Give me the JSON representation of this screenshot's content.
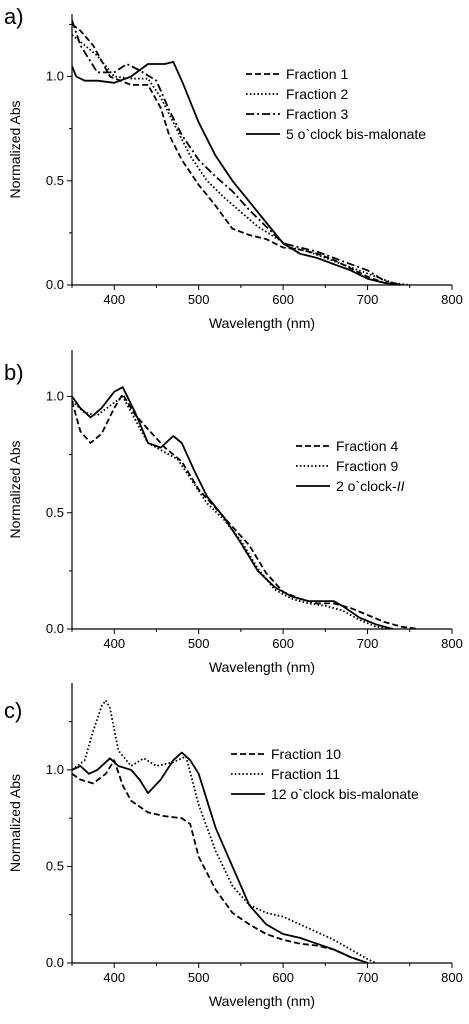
{
  "chart_data": [
    {
      "panel_label": "a)",
      "type": "line",
      "xlabel": "Wavelength (nm)",
      "ylabel": "Normalized Abs",
      "xlim": [
        350,
        800
      ],
      "ylim": [
        0,
        1.3
      ],
      "xticks": [
        400,
        500,
        600,
        700,
        800
      ],
      "yticks": [
        0.0,
        0.5,
        1.0
      ],
      "legend_position": "right",
      "series": [
        {
          "name": "Fraction 1",
          "dash": "dashed",
          "x": [
            350,
            360,
            375,
            395,
            420,
            440,
            455,
            465,
            480,
            500,
            520,
            540,
            560,
            580,
            600,
            620,
            640,
            660,
            680,
            700,
            720,
            740
          ],
          "y": [
            1.25,
            1.22,
            1.15,
            1.0,
            0.96,
            0.96,
            0.85,
            0.72,
            0.6,
            0.48,
            0.38,
            0.27,
            0.24,
            0.22,
            0.18,
            0.17,
            0.15,
            0.12,
            0.08,
            0.04,
            0.01,
            0.0
          ]
        },
        {
          "name": "Fraction 2",
          "dash": "dotted",
          "x": [
            350,
            365,
            380,
            400,
            420,
            440,
            455,
            470,
            490,
            510,
            530,
            550,
            570,
            590,
            610,
            630,
            650,
            670,
            690,
            710,
            730,
            750
          ],
          "y": [
            1.2,
            1.15,
            1.1,
            1.0,
            0.99,
            0.99,
            0.9,
            0.78,
            0.62,
            0.5,
            0.42,
            0.35,
            0.28,
            0.23,
            0.18,
            0.16,
            0.13,
            0.1,
            0.07,
            0.04,
            0.01,
            0.0
          ]
        },
        {
          "name": "Fraction 3",
          "dash": "dashdot",
          "x": [
            350,
            360,
            380,
            400,
            415,
            430,
            450,
            465,
            480,
            500,
            520,
            540,
            560,
            580,
            600,
            620,
            640,
            660,
            680,
            700,
            720,
            740
          ],
          "y": [
            1.27,
            1.15,
            1.02,
            1.02,
            1.06,
            1.03,
            0.98,
            0.84,
            0.72,
            0.6,
            0.52,
            0.45,
            0.36,
            0.28,
            0.2,
            0.18,
            0.16,
            0.13,
            0.1,
            0.07,
            0.02,
            0.0
          ]
        },
        {
          "name": "5 o`clock bis-malonate",
          "dash": "solid",
          "x": [
            350,
            355,
            365,
            380,
            400,
            420,
            440,
            460,
            470,
            480,
            500,
            520,
            540,
            560,
            580,
            600,
            620,
            640,
            660,
            680,
            700,
            720,
            740
          ],
          "y": [
            1.05,
            1.0,
            0.98,
            0.98,
            0.97,
            1.0,
            1.06,
            1.06,
            1.07,
            0.98,
            0.78,
            0.62,
            0.5,
            0.4,
            0.3,
            0.2,
            0.15,
            0.13,
            0.1,
            0.07,
            0.03,
            0.01,
            0.0
          ]
        }
      ]
    },
    {
      "panel_label": "b)",
      "type": "line",
      "xlabel": "Wavelength (nm)",
      "ylabel": "Normalized Abs",
      "xlim": [
        350,
        800
      ],
      "ylim": [
        0,
        1.2
      ],
      "xticks": [
        400,
        500,
        600,
        700,
        800
      ],
      "yticks": [
        0.0,
        0.5,
        1.0
      ],
      "legend_position": "right",
      "series": [
        {
          "name": "Fraction 4",
          "dash": "dashed",
          "x": [
            350,
            360,
            372,
            385,
            400,
            410,
            425,
            440,
            460,
            480,
            500,
            520,
            540,
            560,
            580,
            600,
            620,
            640,
            660,
            680,
            700,
            720,
            740,
            760
          ],
          "y": [
            0.98,
            0.85,
            0.8,
            0.84,
            0.95,
            1.01,
            0.92,
            0.86,
            0.78,
            0.72,
            0.6,
            0.52,
            0.44,
            0.36,
            0.24,
            0.16,
            0.13,
            0.11,
            0.11,
            0.09,
            0.06,
            0.03,
            0.01,
            0.0
          ]
        },
        {
          "name": "Fraction 9",
          "dash": "dotted",
          "x": [
            350,
            365,
            380,
            395,
            410,
            425,
            440,
            460,
            475,
            490,
            510,
            530,
            550,
            570,
            590,
            610,
            630,
            650,
            670,
            690,
            710,
            730
          ],
          "y": [
            0.98,
            0.93,
            0.92,
            0.96,
            1.0,
            0.9,
            0.8,
            0.76,
            0.73,
            0.65,
            0.54,
            0.47,
            0.38,
            0.26,
            0.17,
            0.13,
            0.11,
            0.1,
            0.08,
            0.04,
            0.01,
            0.0
          ]
        },
        {
          "name": "2 o`clock-II",
          "name_plain": "2 o`clock-",
          "name_italic": "II",
          "dash": "solid",
          "x": [
            350,
            360,
            372,
            385,
            400,
            410,
            425,
            440,
            455,
            470,
            480,
            495,
            510,
            530,
            550,
            570,
            590,
            610,
            630,
            650,
            660,
            670,
            690,
            710,
            730
          ],
          "y": [
            1.0,
            0.95,
            0.91,
            0.95,
            1.02,
            1.04,
            0.93,
            0.8,
            0.78,
            0.83,
            0.8,
            0.68,
            0.57,
            0.48,
            0.37,
            0.25,
            0.18,
            0.14,
            0.12,
            0.12,
            0.12,
            0.1,
            0.05,
            0.02,
            0.0
          ]
        }
      ]
    },
    {
      "panel_label": "c)",
      "type": "line",
      "xlabel": "Wavelength (nm)",
      "ylabel": "Normalized Abs",
      "xlim": [
        350,
        800
      ],
      "ylim": [
        0,
        1.45
      ],
      "xticks": [
        400,
        500,
        600,
        700,
        800
      ],
      "yticks": [
        0.0,
        0.5,
        1.0
      ],
      "legend_position": "right",
      "series": [
        {
          "name": "Fraction 10",
          "dash": "dashed",
          "x": [
            350,
            360,
            375,
            390,
            400,
            410,
            420,
            440,
            460,
            480,
            490,
            500,
            520,
            540,
            560,
            580,
            600,
            620,
            640,
            660,
            680,
            700
          ],
          "y": [
            0.98,
            0.95,
            0.93,
            0.98,
            1.05,
            0.92,
            0.84,
            0.78,
            0.76,
            0.75,
            0.72,
            0.55,
            0.38,
            0.26,
            0.2,
            0.15,
            0.12,
            0.1,
            0.09,
            0.07,
            0.03,
            0.0
          ]
        },
        {
          "name": "Fraction 11",
          "dash": "dotted",
          "x": [
            350,
            365,
            375,
            385,
            390,
            395,
            405,
            420,
            435,
            450,
            470,
            485,
            500,
            520,
            540,
            560,
            580,
            600,
            620,
            640,
            660,
            680,
            700,
            710
          ],
          "y": [
            1.0,
            1.05,
            1.2,
            1.33,
            1.36,
            1.32,
            1.1,
            1.02,
            1.06,
            1.02,
            1.04,
            1.07,
            0.82,
            0.58,
            0.4,
            0.3,
            0.26,
            0.24,
            0.2,
            0.16,
            0.12,
            0.07,
            0.02,
            0.0
          ]
        },
        {
          "name": "12 o`clock bis-malonate",
          "dash": "solid",
          "x": [
            350,
            360,
            370,
            380,
            395,
            405,
            420,
            430,
            440,
            455,
            470,
            480,
            490,
            500,
            520,
            540,
            560,
            580,
            600,
            620,
            640,
            660,
            680,
            700
          ],
          "y": [
            1.0,
            1.02,
            0.98,
            1.0,
            1.06,
            1.02,
            1.0,
            0.95,
            0.88,
            0.95,
            1.05,
            1.09,
            1.05,
            0.98,
            0.7,
            0.5,
            0.3,
            0.2,
            0.15,
            0.13,
            0.1,
            0.07,
            0.03,
            0.0
          ]
        }
      ]
    }
  ]
}
